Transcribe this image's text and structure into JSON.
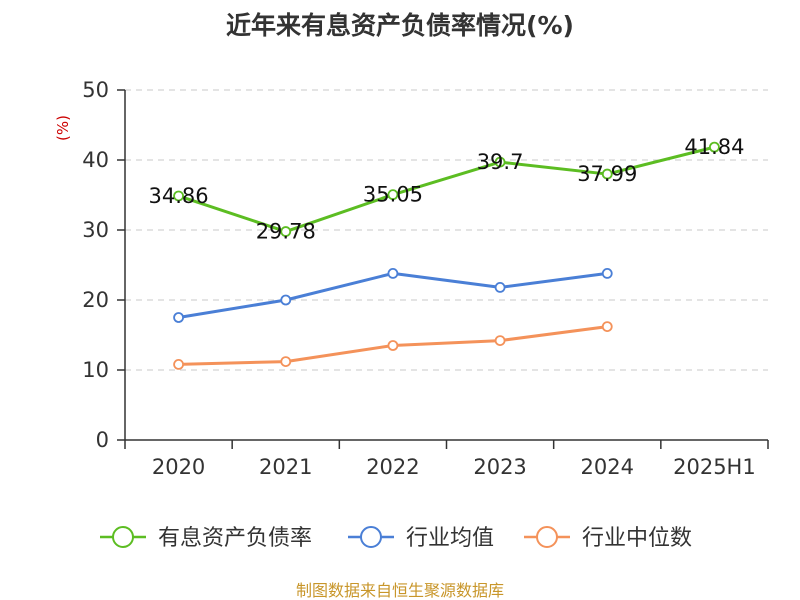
{
  "chart_data": {
    "type": "line",
    "title": "近年来有息资产负债率情况(%)",
    "ylabel": "(%)",
    "xlabel": "",
    "categories": [
      "2020",
      "2021",
      "2022",
      "2023",
      "2024",
      "2025H1"
    ],
    "ylim": [
      0,
      50
    ],
    "yticks": [
      0,
      10,
      20,
      30,
      40,
      50
    ],
    "grid": true,
    "legend_position": "bottom",
    "series": [
      {
        "name": "有息资产负债率",
        "color": "#5cbd22",
        "values": [
          34.86,
          29.78,
          35.05,
          39.7,
          37.99,
          41.84
        ],
        "data_labels": [
          "34.86",
          "29.78",
          "35.05",
          "39.7",
          "37.99",
          "41.84"
        ]
      },
      {
        "name": "行业均值",
        "color": "#4a7fd6",
        "values": [
          17.5,
          20.0,
          23.8,
          21.8,
          23.8,
          null
        ]
      },
      {
        "name": "行业中位数",
        "color": "#f4925a",
        "values": [
          10.8,
          11.2,
          13.5,
          14.2,
          16.2,
          null
        ]
      }
    ],
    "source": "制图数据来自恒生聚源数据库"
  }
}
